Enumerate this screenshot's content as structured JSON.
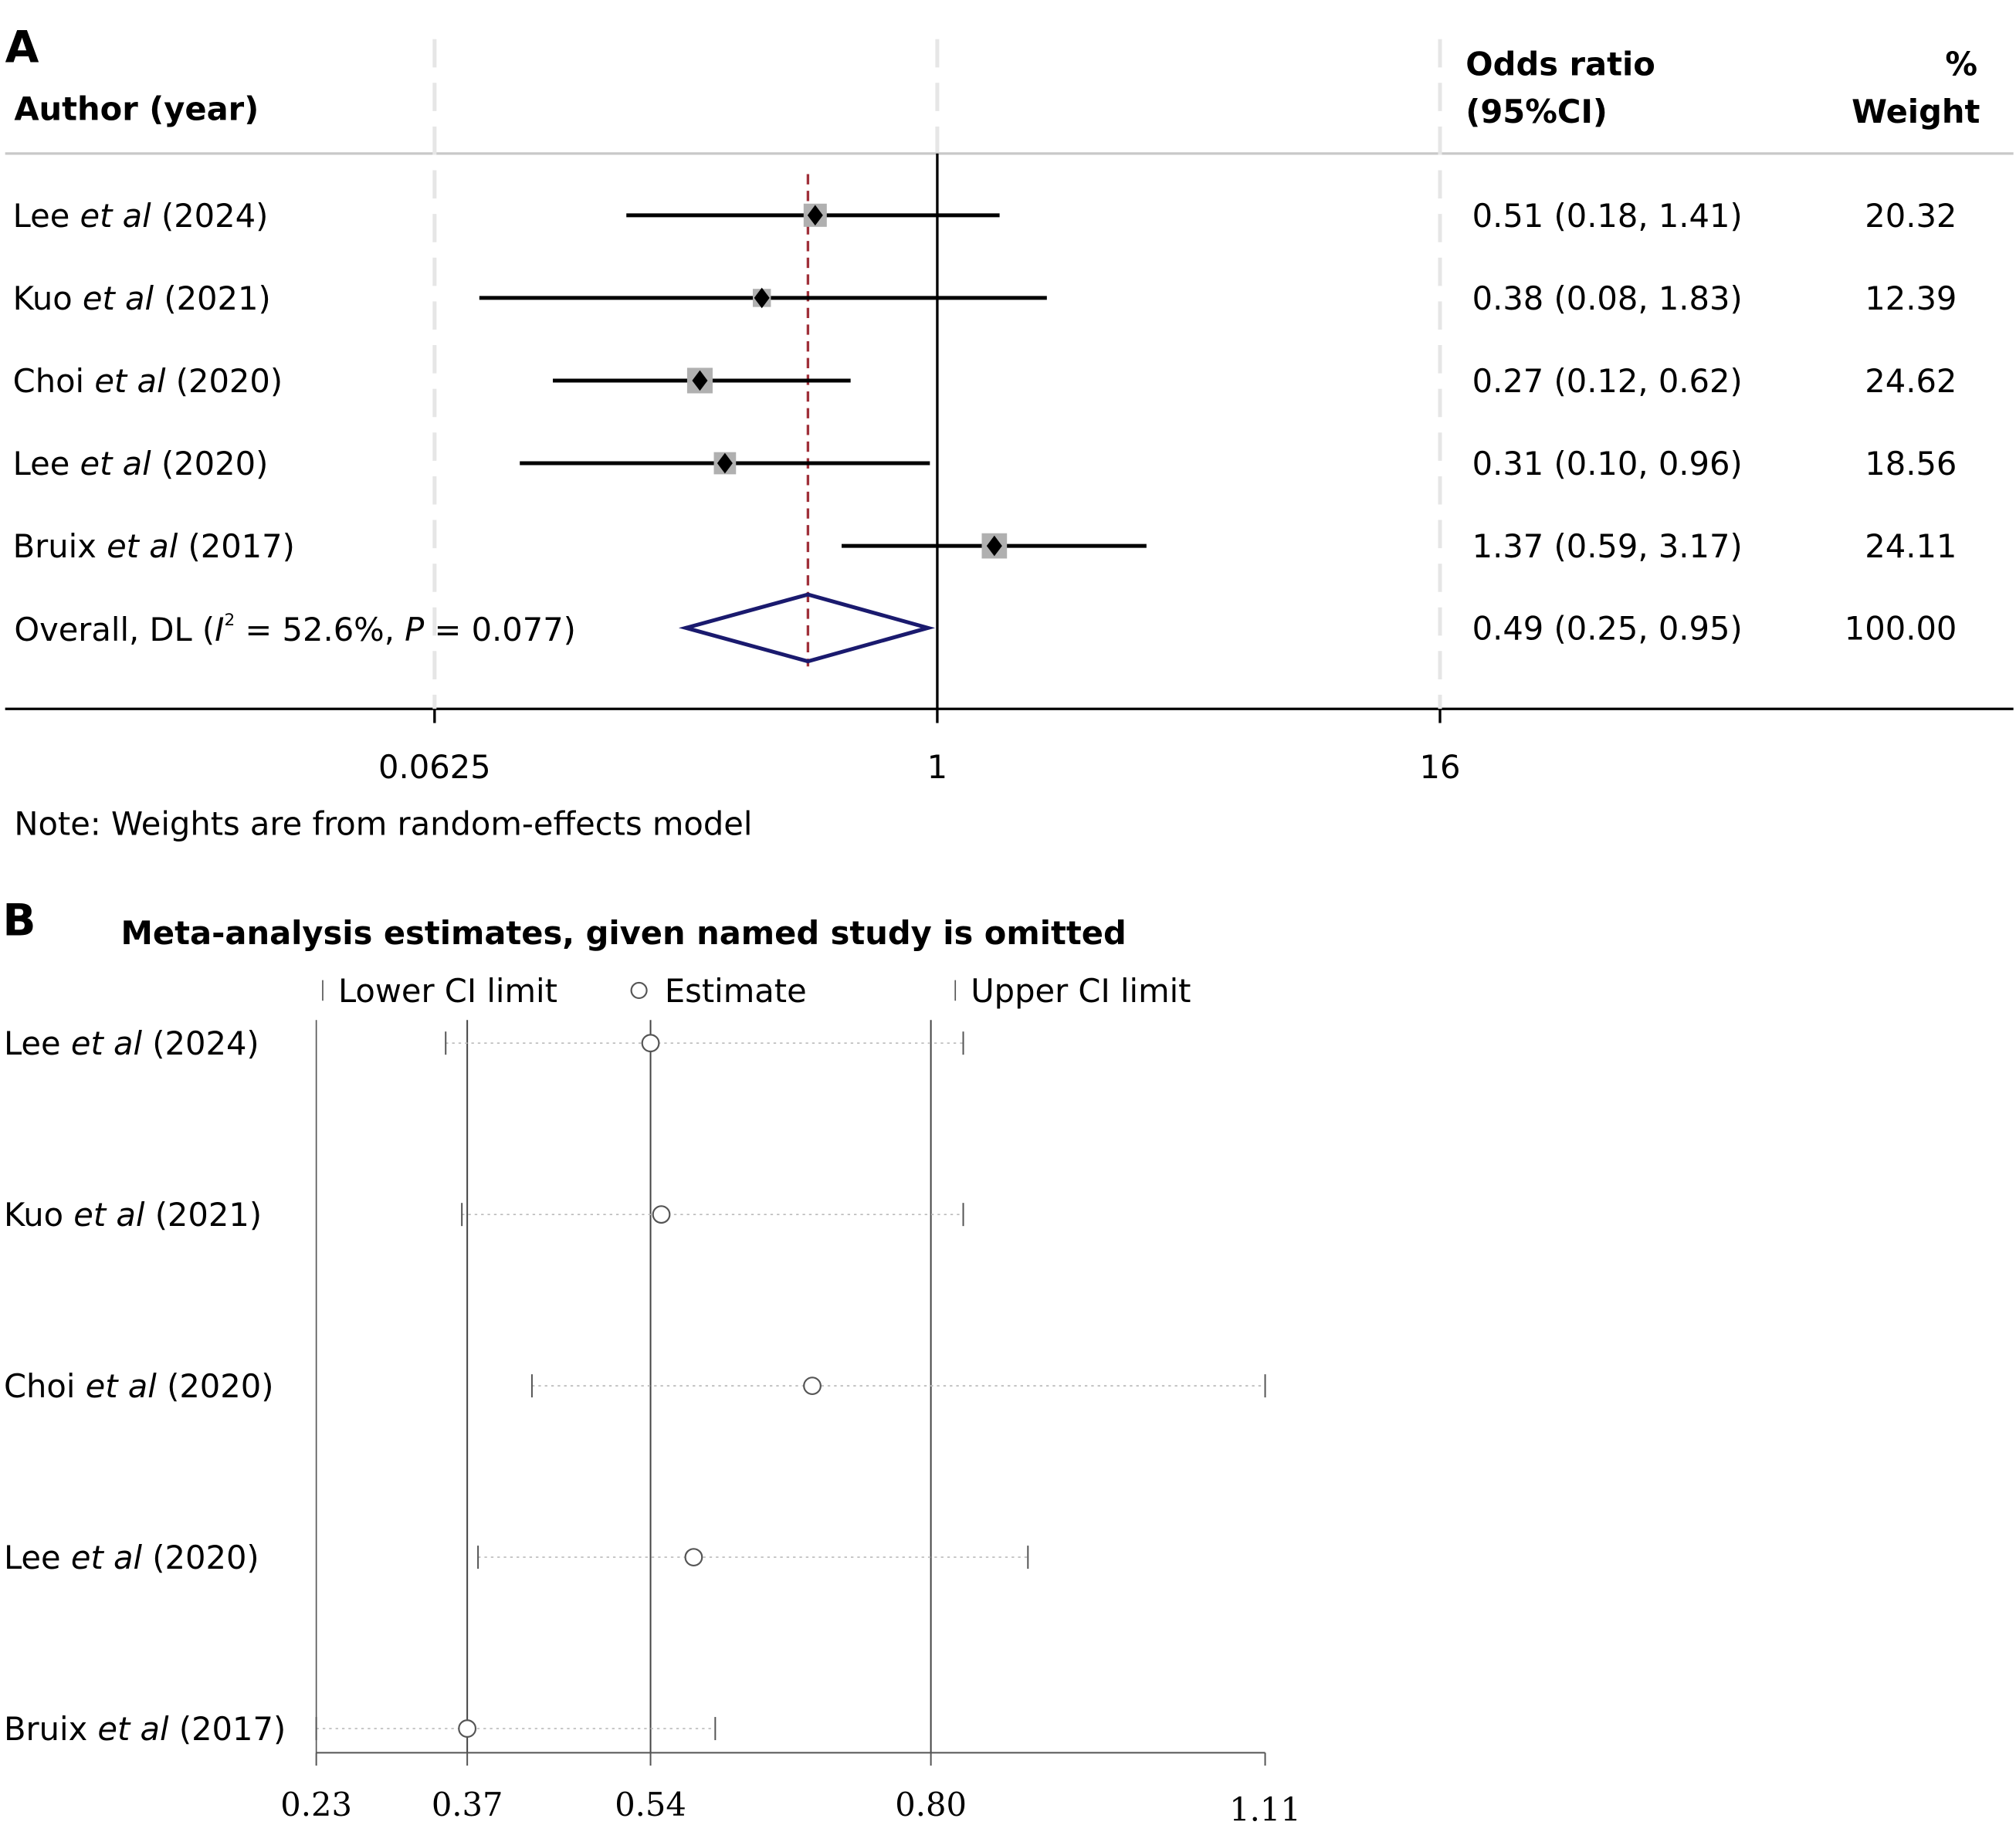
{
  "panel_a": {
    "letter": "A",
    "header": {
      "author": "Author (year)",
      "or_line1": "Odds ratio",
      "or_line2": "(95%CI)",
      "w_line1": "%",
      "w_line2": "Weight"
    },
    "note": "Note: Weights are from random-effects model",
    "overall_label": {
      "pre": "Overall, DL (",
      "i2": "I",
      "sup": "2",
      "mid": " = 52.6%, ",
      "p": "P",
      "post": " = 0.077)"
    }
  },
  "panel_b": {
    "letter": "B",
    "legend": {
      "lower": "Lower CI limit",
      "estimate": "Estimate",
      "upper": "Upper CI limit"
    }
  },
  "colors": {
    "diamond": "#1a1a6e",
    "null_line": "#000000",
    "overall_line": "#a0303a",
    "box": "#b0b0b0"
  },
  "chart_data": [
    {
      "type": "forest",
      "title": "",
      "xscale": "log2",
      "xticks": [
        0.0625,
        1,
        16
      ],
      "xtick_labels": [
        "0.0625",
        "1",
        "16"
      ],
      "studies": [
        {
          "author": "Lee",
          "etal": "et al",
          "year": "(2024)",
          "or": 0.51,
          "lo": 0.18,
          "hi": 1.41,
          "ci_text": "0.51 (0.18, 1.41)",
          "weight": "20.32"
        },
        {
          "author": "Kuo",
          "etal": "et al",
          "year": "(2021)",
          "or": 0.38,
          "lo": 0.08,
          "hi": 1.83,
          "ci_text": "0.38 (0.08, 1.83)",
          "weight": "12.39"
        },
        {
          "author": "Choi",
          "etal": "et al",
          "year": "(2020)",
          "or": 0.27,
          "lo": 0.12,
          "hi": 0.62,
          "ci_text": "0.27 (0.12, 0.62)",
          "weight": "24.62"
        },
        {
          "author": "Lee",
          "etal": "et al",
          "year": "(2020)",
          "or": 0.31,
          "lo": 0.1,
          "hi": 0.96,
          "ci_text": "0.31 (0.10, 0.96)",
          "weight": "18.56"
        },
        {
          "author": "Bruix",
          "etal": "et al",
          "year": "(2017)",
          "or": 1.37,
          "lo": 0.59,
          "hi": 3.17,
          "ci_text": "1.37 (0.59, 3.17)",
          "weight": "24.11"
        }
      ],
      "overall": {
        "or": 0.49,
        "lo": 0.25,
        "hi": 0.95,
        "ci_text": "0.49 (0.25, 0.95)",
        "weight": "100.00"
      }
    },
    {
      "type": "scatter",
      "title": "Meta-analysis estimates, given named study is omitted",
      "xlim": [
        0.23,
        1.11
      ],
      "xticks": [
        0.23,
        0.37,
        0.54,
        0.8,
        1.11
      ],
      "xtick_labels": [
        "0.23",
        "0.37",
        "0.54",
        "0.80",
        "1.11"
      ],
      "reference_lines": [
        0.37,
        0.54,
        0.8
      ],
      "legend": "top",
      "rows": [
        {
          "author": "Lee",
          "etal": "et al",
          "year": "(2024)",
          "lower": 0.35,
          "estimate": 0.54,
          "upper": 0.83
        },
        {
          "author": "Kuo",
          "etal": "et al",
          "year": "(2021)",
          "lower": 0.365,
          "estimate": 0.55,
          "upper": 0.83
        },
        {
          "author": "Choi",
          "etal": "et al",
          "year": "(2020)",
          "lower": 0.43,
          "estimate": 0.69,
          "upper": 1.11
        },
        {
          "author": "Lee",
          "etal": "et al",
          "year": "(2020)",
          "lower": 0.38,
          "estimate": 0.58,
          "upper": 0.89
        },
        {
          "author": "Bruix",
          "etal": "et al",
          "year": "(2017)",
          "lower": 0.23,
          "estimate": 0.37,
          "upper": 0.6
        }
      ]
    }
  ]
}
